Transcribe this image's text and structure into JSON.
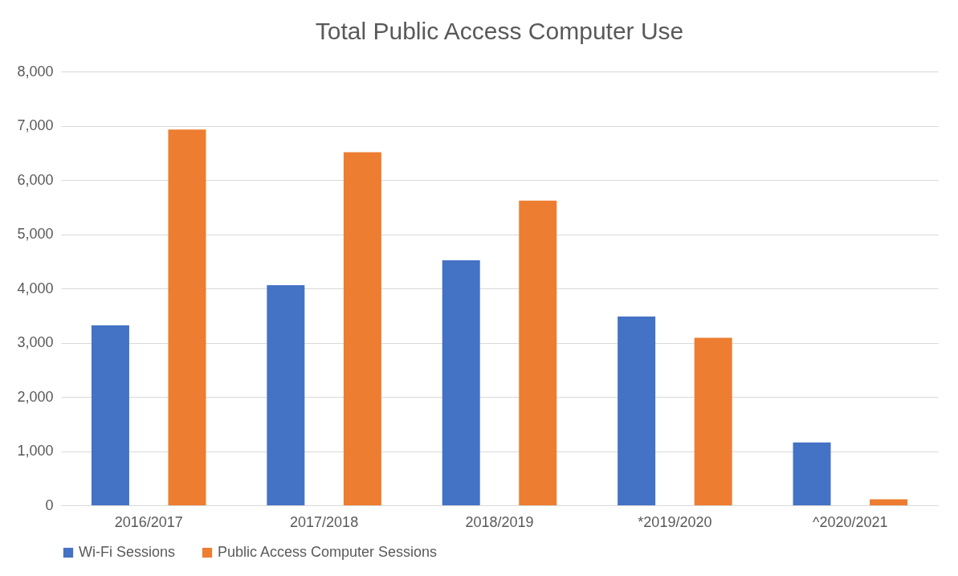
{
  "chart_data": {
    "type": "bar",
    "title": "Total Public Access Computer Use",
    "categories": [
      "2016/2017",
      "2017/2018",
      "2018/2019",
      "*2019/2020",
      "^2020/2021"
    ],
    "series": [
      {
        "name": "Wi-Fi Sessions",
        "color": "#4472c4",
        "values": [
          3320,
          4060,
          4520,
          3480,
          1160
        ]
      },
      {
        "name": "Public Access Computer Sessions",
        "color": "#ed7d31",
        "values": [
          6930,
          6510,
          5620,
          3090,
          110
        ]
      }
    ],
    "ylim": [
      0,
      8000
    ],
    "yticks": [
      0,
      {
        "value": 1000,
        "label": "1,000"
      },
      {
        "value": 2000,
        "label": "2,000"
      },
      {
        "value": 3000,
        "label": "3,000"
      },
      {
        "value": 4000,
        "label": "4,000"
      },
      {
        "value": 5000,
        "label": "5,000"
      },
      {
        "value": 6000,
        "label": "6,000"
      },
      {
        "value": 7000,
        "label": "7,000"
      },
      {
        "value": 8000,
        "label": "8,000"
      }
    ],
    "grid": "y",
    "legend": "bottom"
  }
}
